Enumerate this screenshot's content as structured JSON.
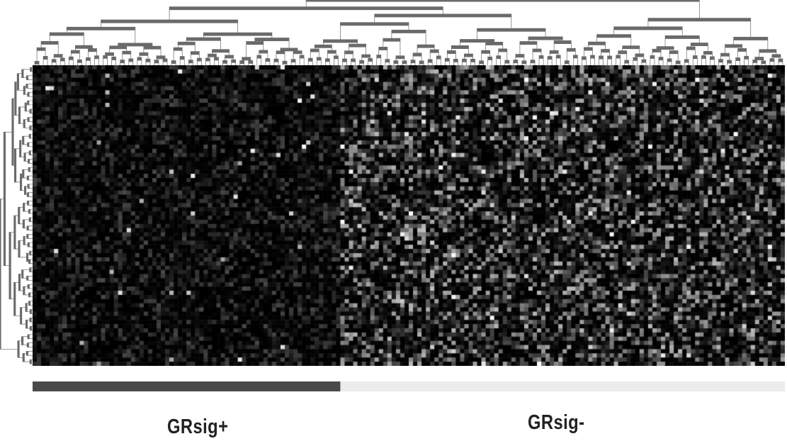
{
  "chart_data": {
    "type": "heatmap",
    "title": "",
    "xlabel": "",
    "ylabel": "",
    "rows": 72,
    "columns": 176,
    "groups": [
      {
        "label": "GRsig+",
        "column_count": 72,
        "bar_color": "#4a4a4a",
        "mean_intensity": 0.12
      },
      {
        "label": "GRsig-",
        "column_count": 104,
        "bar_color": "#ececec",
        "mean_intensity": 0.3
      }
    ],
    "color_scale": {
      "low": "#000000",
      "high": "#ffffff"
    },
    "row_dendrogram": true,
    "column_dendrogram": true,
    "grid": false,
    "legend": "none"
  }
}
